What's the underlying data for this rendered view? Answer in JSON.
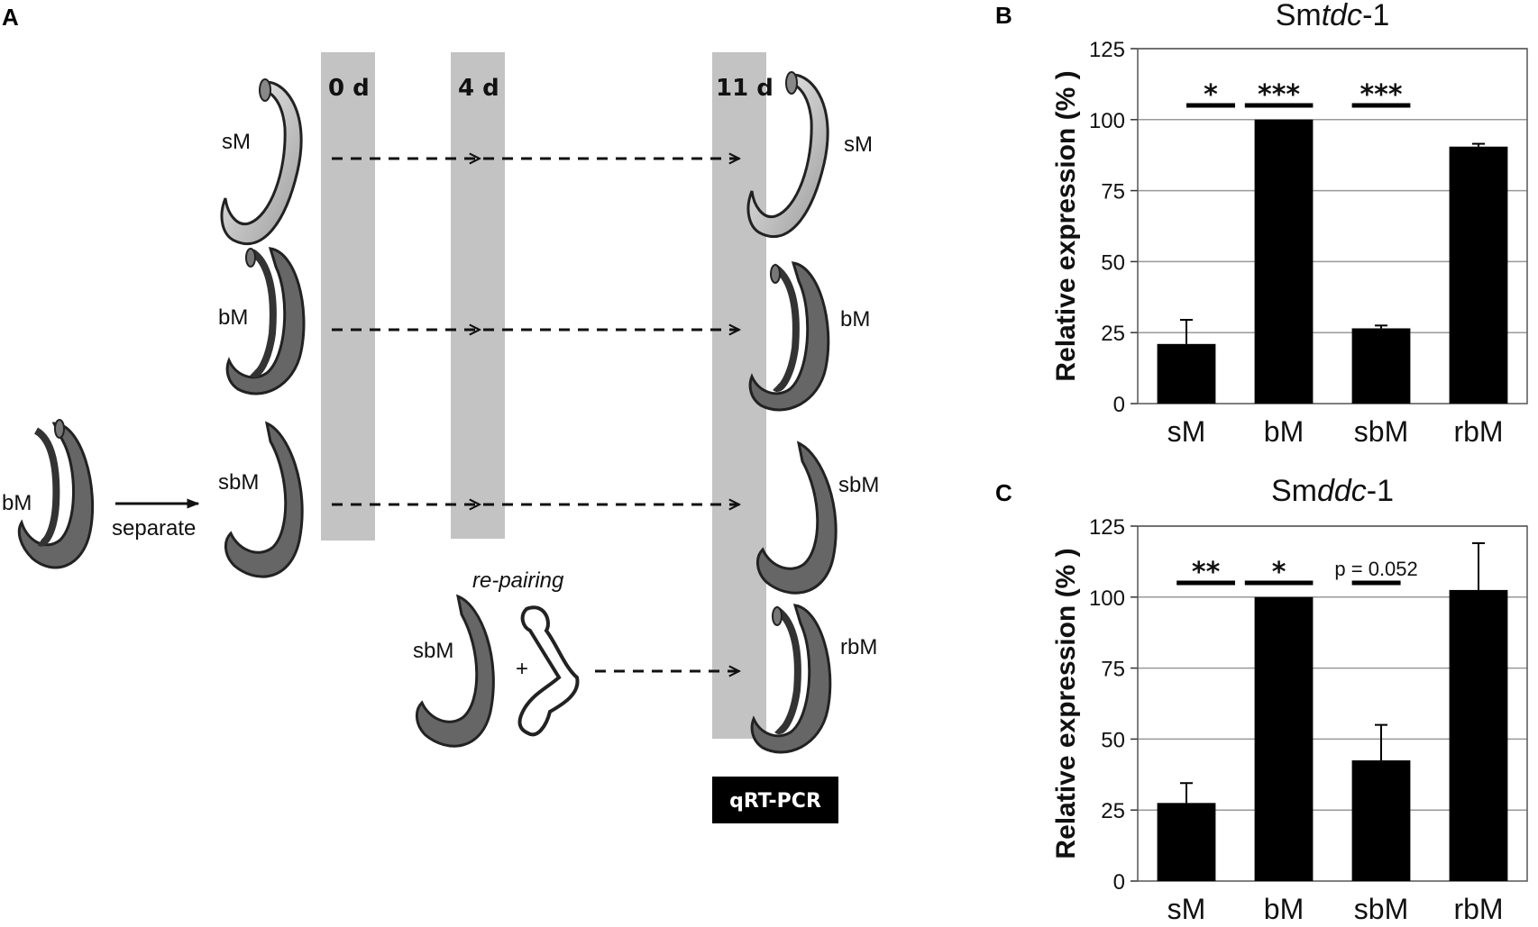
{
  "panel_a": {
    "panel_label": "A",
    "day_labels": [
      "0 d",
      "4 d",
      "11 d"
    ],
    "worm_labels": {
      "start_bM": "bM",
      "separate": "separate",
      "left_sM": "sM",
      "left_bM": "bM",
      "left_sbM": "sbM",
      "repair_sbM": "sbM",
      "repairing": "re-pairing",
      "plus": "+",
      "right_sM": "sM",
      "right_bM": "bM",
      "right_sbM": "sbM",
      "right_rbM": "rbM"
    },
    "assay_label": "qRT-PCR"
  },
  "chart_data": [
    {
      "type": "bar",
      "panel_label": "B",
      "title_prefix": "Sm",
      "title_italic": "tdc",
      "title_suffix": "-1",
      "categories": [
        "sM",
        "bM",
        "sbM",
        "rbM"
      ],
      "values": [
        21,
        100,
        26.5,
        90.5
      ],
      "errors": [
        8.5,
        0,
        1,
        1
      ],
      "ylabel": "Relative expression (% )",
      "ylim": [
        0,
        125
      ],
      "yticks": [
        0,
        25,
        50,
        75,
        100,
        125
      ],
      "grid": true,
      "significance": [
        {
          "from": 0.5,
          "to": 1.0,
          "level": 105,
          "label": "*"
        },
        {
          "from": 1.1,
          "to": 1.8,
          "level": 105,
          "label": "***"
        },
        {
          "from": 2.2,
          "to": 2.8,
          "level": 105,
          "label": "***"
        }
      ]
    },
    {
      "type": "bar",
      "panel_label": "C",
      "title_prefix": "Sm",
      "title_italic": "ddc",
      "title_suffix": "-1",
      "categories": [
        "sM",
        "bM",
        "sbM",
        "rbM"
      ],
      "values": [
        27.5,
        100,
        42.5,
        102.5
      ],
      "errors": [
        7,
        0,
        12.5,
        16.5
      ],
      "ylabel": "Relative expression (% )",
      "ylim": [
        0,
        125
      ],
      "yticks": [
        0,
        25,
        50,
        75,
        100,
        125
      ],
      "grid": true,
      "significance": [
        {
          "from": 0.4,
          "to": 1.0,
          "level": 105,
          "label": "**"
        },
        {
          "from": 1.1,
          "to": 1.8,
          "level": 105,
          "label": "*"
        },
        {
          "from": 2.2,
          "to": 2.7,
          "level": 105,
          "label": "p = 0.052"
        }
      ]
    }
  ]
}
